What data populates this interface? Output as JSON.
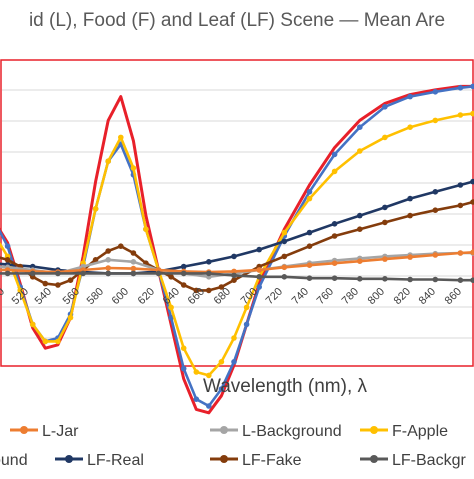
{
  "chart_data": {
    "type": "line",
    "title": "id (L), Food (F) and Leaf (LF) Scene — Mean Are",
    "xlabel": "Wavelength (nm), λ",
    "ylabel": "",
    "x_ticks": [
      "00",
      "520",
      "540",
      "560",
      "580",
      "600",
      "620",
      "640",
      "660",
      "680",
      "700",
      "720",
      "740",
      "760",
      "780",
      "800",
      "820",
      "840",
      "860"
    ],
    "xlim": [
      490,
      870
    ],
    "ylim": [
      -3,
      3
    ],
    "grid": true,
    "legend_position": "bottom",
    "legend": [
      "L-Jar",
      "L-Background",
      "F-Apple",
      "ound",
      "LF-Real",
      "LF-Fake",
      "LF-Backgr"
    ],
    "series": [
      {
        "name": "F-Apple (partially hidden, red)",
        "color": "#e8202a",
        "marker": false,
        "x": [
          490,
          500,
          510,
          520,
          530,
          540,
          550,
          560,
          570,
          580,
          590,
          600,
          610,
          620,
          630,
          640,
          650,
          660,
          670,
          680,
          690,
          700,
          720,
          740,
          760,
          780,
          800,
          820,
          840,
          860,
          870
        ],
        "y": [
          0.7,
          0.4,
          -0.2,
          -0.85,
          -1.15,
          -1.1,
          -0.7,
          0.2,
          1.3,
          2.2,
          2.55,
          1.9,
          0.8,
          0,
          -0.8,
          -1.6,
          -2.05,
          -2.1,
          -1.85,
          -1.4,
          -0.8,
          -0.2,
          0.6,
          1.25,
          1.8,
          2.2,
          2.45,
          2.58,
          2.65,
          2.7,
          2.7
        ]
      },
      {
        "name": "ound",
        "color": "#4472c4",
        "marker": true,
        "x": [
          490,
          500,
          510,
          520,
          530,
          540,
          550,
          560,
          570,
          580,
          590,
          600,
          610,
          620,
          630,
          640,
          650,
          660,
          670,
          680,
          690,
          700,
          720,
          740,
          760,
          780,
          800,
          820,
          840,
          860,
          870
        ],
        "y": [
          0.7,
          0.35,
          -0.25,
          -0.8,
          -1.05,
          -1.0,
          -0.65,
          0.05,
          0.9,
          1.6,
          1.85,
          1.4,
          0.6,
          0,
          -0.7,
          -1.45,
          -1.9,
          -2.0,
          -1.75,
          -1.35,
          -0.8,
          -0.25,
          0.5,
          1.15,
          1.7,
          2.1,
          2.4,
          2.55,
          2.62,
          2.68,
          2.7
        ]
      },
      {
        "name": "F-Apple",
        "color": "#ffc000",
        "marker": true,
        "x": [
          490,
          500,
          510,
          520,
          530,
          540,
          550,
          560,
          570,
          580,
          590,
          600,
          610,
          620,
          630,
          640,
          650,
          660,
          670,
          680,
          690,
          700,
          720,
          740,
          760,
          780,
          800,
          820,
          840,
          860,
          870
        ],
        "y": [
          0.5,
          0.2,
          -0.3,
          -0.8,
          -1.05,
          -1.05,
          -0.7,
          0.1,
          0.9,
          1.6,
          1.95,
          1.5,
          0.6,
          0,
          -0.55,
          -1.15,
          -1.5,
          -1.55,
          -1.35,
          -1.0,
          -0.55,
          -0.1,
          0.55,
          1.05,
          1.45,
          1.75,
          1.95,
          2.1,
          2.2,
          2.28,
          2.3
        ]
      },
      {
        "name": "LF-Real",
        "color": "#203864",
        "marker": true,
        "x": [
          490,
          500,
          520,
          540,
          560,
          580,
          600,
          620,
          640,
          660,
          680,
          700,
          720,
          740,
          760,
          780,
          800,
          820,
          840,
          860,
          870
        ],
        "y": [
          0.1,
          0.08,
          0.05,
          0.0,
          -0.03,
          -0.05,
          -0.05,
          -0.02,
          0.05,
          0.12,
          0.2,
          0.3,
          0.42,
          0.55,
          0.68,
          0.8,
          0.92,
          1.05,
          1.15,
          1.25,
          1.3
        ]
      },
      {
        "name": "LF-Fake",
        "color": "#843c0c",
        "marker": true,
        "x": [
          490,
          500,
          510,
          520,
          530,
          540,
          550,
          560,
          570,
          580,
          590,
          600,
          610,
          620,
          630,
          640,
          650,
          660,
          670,
          680,
          700,
          720,
          740,
          760,
          780,
          800,
          820,
          840,
          860,
          870
        ],
        "y": [
          0.2,
          0.15,
          0.05,
          -0.1,
          -0.2,
          -0.22,
          -0.15,
          0.0,
          0.15,
          0.28,
          0.35,
          0.25,
          0.1,
          0,
          -0.1,
          -0.22,
          -0.3,
          -0.3,
          -0.25,
          -0.15,
          0.05,
          0.2,
          0.35,
          0.5,
          0.6,
          0.7,
          0.8,
          0.88,
          0.95,
          1.0
        ]
      },
      {
        "name": "L-Background",
        "color": "#a5a5a5",
        "marker": true,
        "x": [
          490,
          500,
          520,
          540,
          560,
          580,
          600,
          620,
          640,
          660,
          680,
          700,
          720,
          740,
          760,
          780,
          800,
          820,
          840,
          860,
          870
        ],
        "y": [
          0.05,
          0.04,
          0.0,
          -0.05,
          0.05,
          0.15,
          0.12,
          0.0,
          -0.05,
          -0.1,
          -0.05,
          0.0,
          0.05,
          0.1,
          0.14,
          0.17,
          0.2,
          0.22,
          0.24,
          0.25,
          0.25
        ]
      },
      {
        "name": "L-Jar",
        "color": "#ed7d31",
        "marker": true,
        "x": [
          490,
          500,
          520,
          540,
          560,
          580,
          600,
          620,
          640,
          660,
          680,
          700,
          720,
          740,
          760,
          780,
          800,
          820,
          840,
          860,
          870
        ],
        "y": [
          0.0,
          0.0,
          -0.02,
          -0.03,
          0.0,
          0.03,
          0.02,
          0.0,
          -0.02,
          -0.03,
          -0.02,
          0.0,
          0.04,
          0.07,
          0.1,
          0.13,
          0.16,
          0.19,
          0.22,
          0.25,
          0.26
        ]
      },
      {
        "name": "LF-Backgr",
        "color": "#595959",
        "marker": true,
        "x": [
          490,
          500,
          520,
          540,
          560,
          580,
          600,
          620,
          640,
          660,
          680,
          700,
          720,
          740,
          760,
          780,
          800,
          820,
          840,
          860,
          870
        ],
        "y": [
          -0.05,
          -0.05,
          -0.05,
          -0.05,
          -0.05,
          -0.05,
          -0.05,
          -0.05,
          -0.05,
          -0.05,
          -0.08,
          -0.1,
          -0.1,
          -0.12,
          -0.12,
          -0.13,
          -0.13,
          -0.14,
          -0.14,
          -0.15,
          -0.15
        ]
      }
    ]
  }
}
